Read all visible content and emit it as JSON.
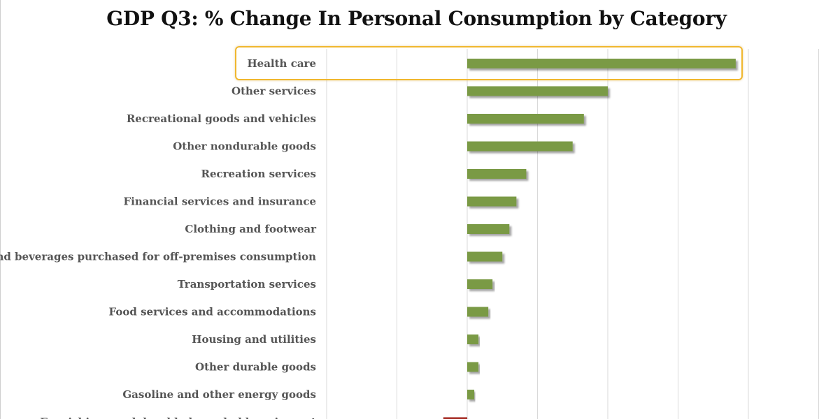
{
  "chart_data": {
    "type": "bar",
    "orientation": "horizontal",
    "title": "GDP Q3: % Change In Personal Consumption by Category",
    "xlabel": "",
    "ylabel": "",
    "xlim": [
      -10,
      25
    ],
    "grid": true,
    "categories": [
      "Health care",
      "Other services",
      "Recreational goods and vehicles",
      "Other nondurable goods",
      "Recreation services",
      "Financial services and insurance",
      "Clothing and footwear",
      "Food and beverages purchased for off-premises consumption",
      "Transportation services",
      "Food services and accommodations",
      "Housing and utilities",
      "Other durable goods",
      "Gasoline and other energy goods",
      "Furnishings and durable household equipment"
    ],
    "values": [
      19.1,
      10.0,
      8.3,
      7.5,
      4.2,
      3.5,
      3.0,
      2.5,
      1.8,
      1.5,
      0.8,
      0.8,
      0.5,
      -1.7
    ],
    "colors": {
      "positive": "#7a9a44",
      "negative": "#a52a22",
      "highlight": "#f0b72f",
      "grid": "#d9d9d9"
    },
    "annotations": [
      "Health care highlighted"
    ]
  }
}
